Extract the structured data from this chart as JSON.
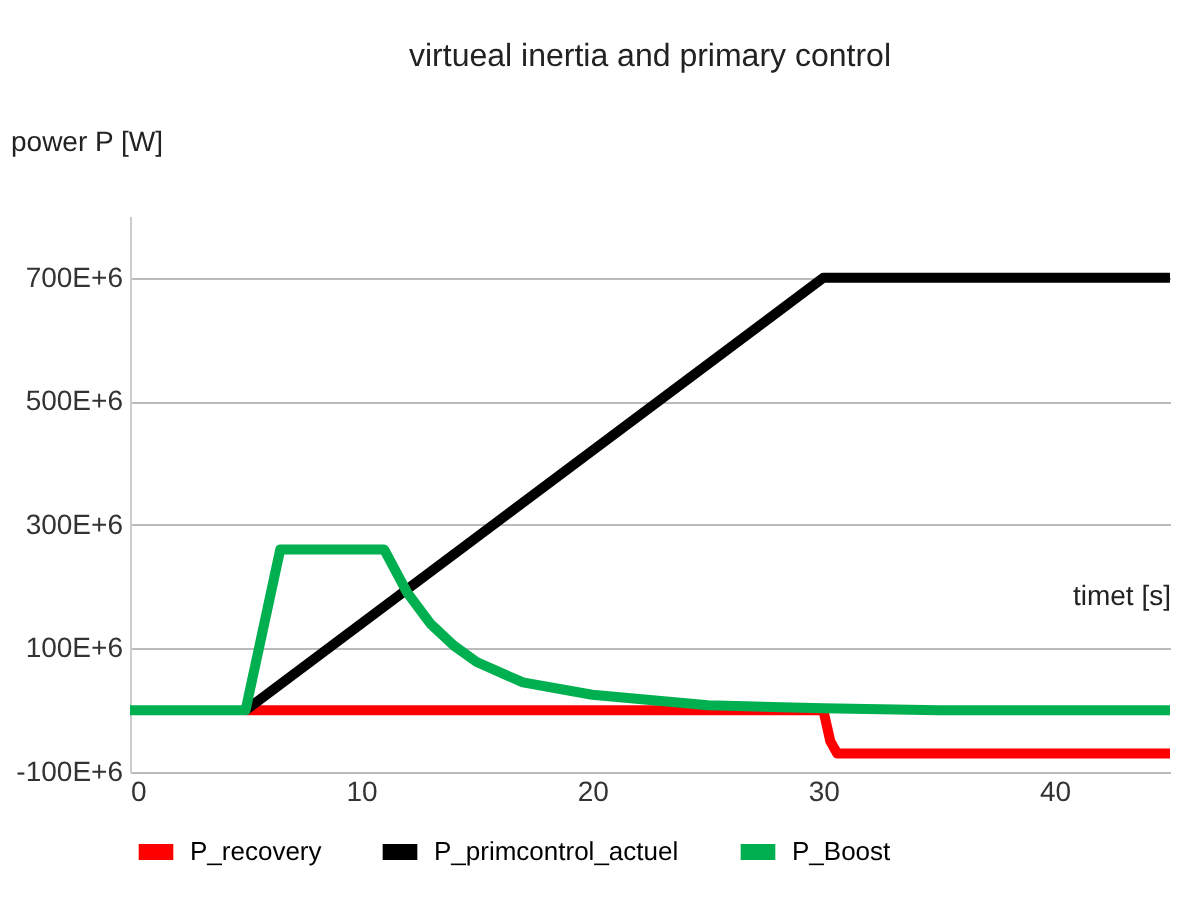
{
  "chart_data": {
    "type": "line",
    "title": "virtueal inertia and primary control",
    "xlabel": "timet [s]",
    "ylabel": "power P [W]",
    "xlim": [
      0,
      45
    ],
    "xticks": [
      0,
      10,
      20,
      30,
      40
    ],
    "ylim": [
      -100000000,
      800000000
    ],
    "yticks": [
      {
        "value": -100000000,
        "label": "-100E+6"
      },
      {
        "value": 100000000,
        "label": "100E+6"
      },
      {
        "value": 300000000,
        "label": "300E+6"
      },
      {
        "value": 500000000,
        "label": "500E+6"
      },
      {
        "value": 700000000,
        "label": "700E+6"
      }
    ],
    "grid": "y",
    "legend": "bottom",
    "marker": "none",
    "line_style": "solid",
    "series": [
      {
        "name": "P_recovery",
        "color": "#ff0000",
        "x": [
          5,
          10,
          20,
          30,
          30.3,
          30.6,
          45
        ],
        "values": [
          0,
          0,
          0,
          0,
          -50000000,
          -70000000,
          -70000000
        ]
      },
      {
        "name": "P_primcontrol_actuel",
        "color": "#000000",
        "x": [
          5,
          30,
          45
        ],
        "values": [
          0,
          700000000,
          700000000
        ]
      },
      {
        "name": "P_Boost",
        "color": "#00b050",
        "x": [
          0,
          5,
          6.5,
          11,
          12,
          13,
          14,
          15,
          17,
          20,
          25,
          30,
          35,
          45
        ],
        "values": [
          0,
          0,
          260000000,
          260000000,
          190000000,
          140000000,
          105000000,
          78000000,
          45000000,
          25000000,
          8000000,
          3000000,
          0,
          0
        ]
      }
    ]
  }
}
